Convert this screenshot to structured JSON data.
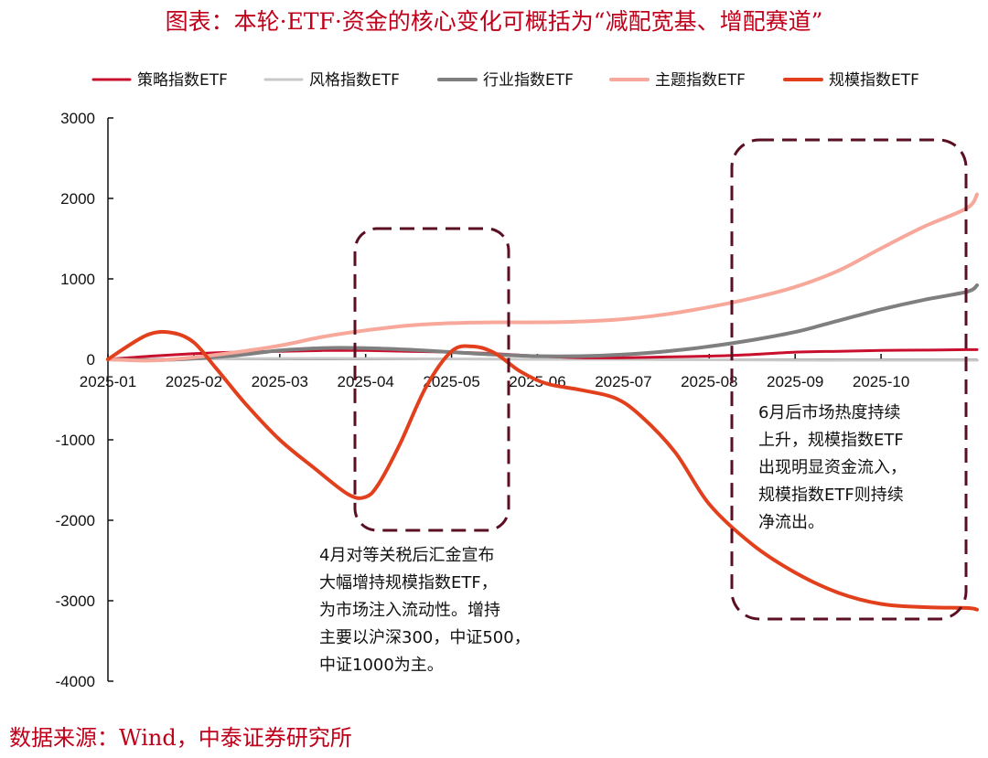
{
  "title": "图表：本轮·ETF·资金的核心变化可概括为“减配宽基、增配赛道”",
  "source": "数据来源：Wind，中泰证券研究所",
  "chart_data": {
    "type": "line",
    "x": [
      "2025-01",
      "2025-02",
      "2025-03",
      "2025-04",
      "2025-05",
      "2025-06",
      "2025-07",
      "2025-08",
      "2025-09",
      "2025-10"
    ],
    "ylim": [
      -4000,
      3000
    ],
    "yticks": [
      "3000",
      "2000",
      "1000",
      "0",
      "-1000",
      "-2000",
      "-3000",
      "-4000"
    ],
    "xticks": [
      "2025-01",
      "2025-02",
      "2025-03",
      "2025-04",
      "2025-05",
      "2025-06",
      "2025-07",
      "2025-08",
      "2025-09",
      "2025-10"
    ],
    "legend_position": "top",
    "series": [
      {
        "name": "策略指数ETF",
        "color": "#c8102e",
        "width": 3,
        "points": [
          [
            0,
            0
          ],
          [
            0.5,
            40
          ],
          [
            1,
            70
          ],
          [
            1.5,
            90
          ],
          [
            2,
            100
          ],
          [
            2.5,
            110
          ],
          [
            3,
            110
          ],
          [
            3.5,
            100
          ],
          [
            4,
            90
          ],
          [
            4.5,
            70
          ],
          [
            5,
            40
          ],
          [
            5.5,
            20
          ],
          [
            6,
            20
          ],
          [
            6.5,
            30
          ],
          [
            7,
            40
          ],
          [
            7.5,
            60
          ],
          [
            8,
            90
          ],
          [
            8.5,
            100
          ],
          [
            9,
            110
          ],
          [
            9.5,
            115
          ],
          [
            10,
            120
          ],
          [
            10.5,
            120
          ]
        ]
      },
      {
        "name": "风格指数ETF",
        "color": "#c8c8c8",
        "width": 3,
        "points": [
          [
            0,
            0
          ],
          [
            1,
            5
          ],
          [
            2,
            10
          ],
          [
            3,
            10
          ],
          [
            4,
            5
          ],
          [
            5,
            0
          ],
          [
            6,
            0
          ],
          [
            7,
            -5
          ],
          [
            8,
            -10
          ],
          [
            9,
            -10
          ],
          [
            10,
            -10
          ],
          [
            10.5,
            -10
          ]
        ]
      },
      {
        "name": "行业指数ETF",
        "color": "#7f7f7f",
        "width": 4,
        "points": [
          [
            0,
            0
          ],
          [
            0.5,
            -10
          ],
          [
            1,
            10
          ],
          [
            1.5,
            50
          ],
          [
            2,
            110
          ],
          [
            2.5,
            140
          ],
          [
            3,
            140
          ],
          [
            3.5,
            120
          ],
          [
            4,
            90
          ],
          [
            4.5,
            60
          ],
          [
            5,
            40
          ],
          [
            5.5,
            40
          ],
          [
            6,
            60
          ],
          [
            6.5,
            100
          ],
          [
            7,
            160
          ],
          [
            7.5,
            240
          ],
          [
            8,
            340
          ],
          [
            8.5,
            480
          ],
          [
            9,
            620
          ],
          [
            9.5,
            740
          ],
          [
            10,
            840
          ],
          [
            10.5,
            920
          ]
        ]
      },
      {
        "name": "主题指数ETF",
        "color": "#f8a89a",
        "width": 4,
        "points": [
          [
            0,
            0
          ],
          [
            0.5,
            -15
          ],
          [
            1,
            25
          ],
          [
            1.5,
            90
          ],
          [
            2,
            170
          ],
          [
            2.5,
            280
          ],
          [
            3,
            360
          ],
          [
            3.5,
            420
          ],
          [
            4,
            450
          ],
          [
            4.5,
            460
          ],
          [
            5,
            460
          ],
          [
            5.5,
            470
          ],
          [
            6,
            500
          ],
          [
            6.5,
            560
          ],
          [
            7,
            650
          ],
          [
            7.5,
            760
          ],
          [
            8,
            900
          ],
          [
            8.5,
            1100
          ],
          [
            9,
            1380
          ],
          [
            9.5,
            1650
          ],
          [
            10,
            1880
          ],
          [
            10.5,
            2050
          ]
        ]
      },
      {
        "name": "规模指数ETF",
        "color": "#e2401c",
        "width": 4,
        "points": [
          [
            0,
            0
          ],
          [
            0.45,
            300
          ],
          [
            0.75,
            330
          ],
          [
            1.0,
            210
          ],
          [
            1.25,
            -100
          ],
          [
            1.6,
            -550
          ],
          [
            2.0,
            -1000
          ],
          [
            2.4,
            -1350
          ],
          [
            2.8,
            -1680
          ],
          [
            3.0,
            -1710
          ],
          [
            3.15,
            -1550
          ],
          [
            3.4,
            -1050
          ],
          [
            3.7,
            -350
          ],
          [
            4.0,
            100
          ],
          [
            4.25,
            160
          ],
          [
            4.5,
            80
          ],
          [
            4.8,
            -150
          ],
          [
            5.1,
            -300
          ],
          [
            5.5,
            -380
          ],
          [
            5.9,
            -480
          ],
          [
            6.2,
            -700
          ],
          [
            6.6,
            -1150
          ],
          [
            7.0,
            -1800
          ],
          [
            7.5,
            -2300
          ],
          [
            8.0,
            -2650
          ],
          [
            8.5,
            -2900
          ],
          [
            9.0,
            -3040
          ],
          [
            9.5,
            -3080
          ],
          [
            10.0,
            -3090
          ],
          [
            10.5,
            -3110
          ]
        ]
      }
    ],
    "annotations": [
      {
        "lines": [
          "4月对等关税后汇金宣布",
          "大幅增持规模指数ETF，",
          "为市场注入流动性。增持",
          "主要以沪深300，中证500，",
          "中证1000为主。"
        ]
      },
      {
        "lines": [
          "6月后市场热度持续",
          "上升，规模指数ETF",
          "出现明显资金流入，",
          "规模指数ETF则持续",
          "净流出。"
        ]
      }
    ]
  }
}
